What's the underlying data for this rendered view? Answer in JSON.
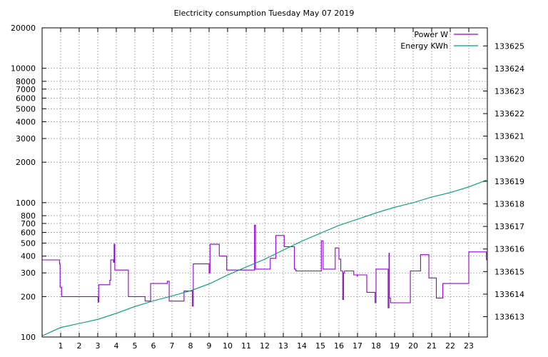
{
  "chart_data": {
    "type": "line",
    "title": "Electricity consumption Tuesday May 07 2019",
    "xlabel": "",
    "ylabel": "",
    "grid": true,
    "legend_position": "top-right",
    "x_axis": {
      "range": [
        0,
        24
      ],
      "tick_labels": [
        "1",
        "2",
        "3",
        "4",
        "5",
        "6",
        "7",
        "8",
        "9",
        "10",
        "11",
        "12",
        "13",
        "14",
        "15",
        "16",
        "17",
        "18",
        "19",
        "20",
        "21",
        "22",
        "23"
      ]
    },
    "y_axis_left": {
      "scale": "log",
      "range": [
        100,
        20000
      ],
      "tick_labels": [
        "100",
        "200",
        "300",
        "400",
        "500",
        "600",
        "700",
        "800",
        "1000",
        "2000",
        "3000",
        "4000",
        "5000",
        "6000",
        "7000",
        "8000",
        "10000",
        "20000"
      ]
    },
    "y_axis_right": {
      "scale": "linear",
      "range": [
        133612.1,
        133625.8
      ],
      "tick_labels": [
        "133613",
        "133614",
        "133615",
        "133616",
        "133617",
        "133618",
        "133619",
        "133620",
        "133621",
        "133622",
        "133623",
        "133624",
        "133625"
      ]
    },
    "series": [
      {
        "name": "Power W",
        "axis": "left",
        "color": "#9400d3",
        "style": "steps",
        "x": [
          0,
          0.94,
          0.97,
          1.05,
          3.0,
          3.02,
          3.05,
          3.6,
          3.65,
          3.7,
          3.85,
          3.88,
          3.92,
          4.15,
          4.65,
          4.7,
          5.55,
          5.85,
          6.75,
          6.85,
          7.15,
          7.35,
          7.65,
          7.95,
          8.1,
          8.15,
          8.2,
          9.0,
          9.05,
          9.55,
          9.95,
          10.5,
          11.0,
          11.45,
          11.5,
          11.56,
          11.7,
          12.0,
          12.3,
          12.6,
          13.05,
          13.6,
          13.68,
          14.0,
          15.0,
          15.05,
          15.15,
          15.8,
          15.9,
          16.0,
          16.1,
          16.2,
          16.25,
          16.3,
          16.8,
          16.98,
          17.0,
          17.5,
          17.95,
          18.0,
          18.6,
          18.65,
          18.7,
          18.72,
          18.78,
          19.0,
          19.85,
          20.4,
          20.85,
          21.25,
          21.6,
          22.0,
          22.75,
          23.0,
          23.95
        ],
        "y": [
          375,
          350,
          235,
          200,
          200,
          182,
          245,
          245,
          265,
          375,
          360,
          490,
          315,
          315,
          200,
          200,
          185,
          250,
          260,
          185,
          185,
          185,
          220,
          220,
          170,
          350,
          350,
          300,
          490,
          400,
          315,
          315,
          315,
          680,
          320,
          320,
          320,
          320,
          385,
          570,
          470,
          320,
          310,
          310,
          310,
          520,
          320,
          460,
          460,
          380,
          310,
          190,
          300,
          310,
          290,
          285,
          290,
          215,
          180,
          320,
          320,
          165,
          420,
          195,
          180,
          180,
          310,
          410,
          275,
          195,
          250,
          250,
          250,
          430,
          375
        ]
      },
      {
        "name": "Energy KWh",
        "axis": "right",
        "color": "#009e73",
        "style": "line",
        "x": [
          0,
          1,
          2,
          3,
          4,
          5,
          6,
          7,
          8,
          9,
          10,
          11,
          12,
          13,
          14,
          15,
          16,
          17,
          18,
          19,
          20,
          21,
          22,
          23,
          23.95
        ],
        "y": [
          133612.15,
          133612.52,
          133612.7,
          133612.88,
          133613.15,
          133613.45,
          133613.7,
          133613.92,
          133614.15,
          133614.45,
          133614.85,
          133615.2,
          133615.55,
          133615.95,
          133616.35,
          133616.7,
          133617.05,
          133617.32,
          133617.6,
          133617.85,
          133618.05,
          133618.3,
          133618.5,
          133618.75,
          133619.05
        ]
      }
    ]
  }
}
